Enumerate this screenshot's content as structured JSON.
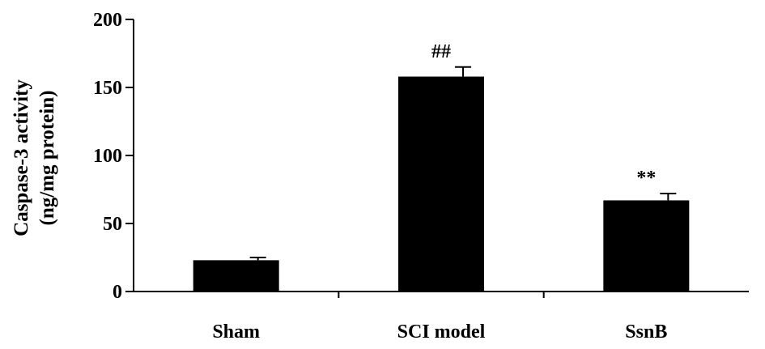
{
  "chart_data": {
    "type": "bar",
    "categories": [
      "Sham",
      "SCI model",
      "SsnB"
    ],
    "values": [
      23,
      158,
      67
    ],
    "errors": [
      2,
      7,
      5
    ],
    "annotations": [
      "",
      "##",
      "**"
    ],
    "ylabel_lines": [
      "Caspase-3 activity",
      "(ng/mg protein)"
    ],
    "ylim": [
      0,
      200
    ],
    "yticks": [
      0,
      50,
      100,
      150,
      200
    ],
    "grid": false,
    "bar_color": "#000000"
  }
}
